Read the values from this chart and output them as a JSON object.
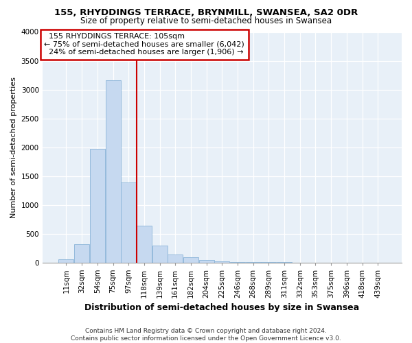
{
  "title": "155, RHYDDINGS TERRACE, BRYNMILL, SWANSEA, SA2 0DR",
  "subtitle": "Size of property relative to semi-detached houses in Swansea",
  "xlabel": "Distribution of semi-detached houses by size in Swansea",
  "ylabel": "Number of semi-detached properties",
  "footer_line1": "Contains HM Land Registry data © Crown copyright and database right 2024.",
  "footer_line2": "Contains public sector information licensed under the Open Government Licence v3.0.",
  "annotation_line1": "  155 RHYDDINGS TERRACE: 105sqm",
  "annotation_line2": "← 75% of semi-detached houses are smaller (6,042)",
  "annotation_line3": "  24% of semi-detached houses are larger (1,906) →",
  "bar_color": "#c6d9f0",
  "bar_edge_color": "#8ab4d8",
  "vline_color": "#cc0000",
  "annotation_box_color": "#cc0000",
  "bg_color": "#e8f0f8",
  "categories": [
    "11sqm",
    "32sqm",
    "54sqm",
    "75sqm",
    "97sqm",
    "118sqm",
    "139sqm",
    "161sqm",
    "182sqm",
    "204sqm",
    "225sqm",
    "246sqm",
    "268sqm",
    "289sqm",
    "311sqm",
    "332sqm",
    "353sqm",
    "375sqm",
    "396sqm",
    "418sqm",
    "439sqm"
  ],
  "values": [
    50,
    320,
    1970,
    3160,
    1390,
    635,
    295,
    135,
    85,
    38,
    14,
    7,
    3,
    2,
    1,
    0,
    0,
    0,
    0,
    0,
    0
  ],
  "ylim": [
    0,
    4000
  ],
  "yticks": [
    0,
    500,
    1000,
    1500,
    2000,
    2500,
    3000,
    3500,
    4000
  ],
  "vline_x": 4.5,
  "title_fontsize": 9.5,
  "subtitle_fontsize": 8.5,
  "ylabel_fontsize": 8,
  "xlabel_fontsize": 9,
  "tick_fontsize": 7.5,
  "annot_fontsize": 8,
  "footer_fontsize": 6.5
}
